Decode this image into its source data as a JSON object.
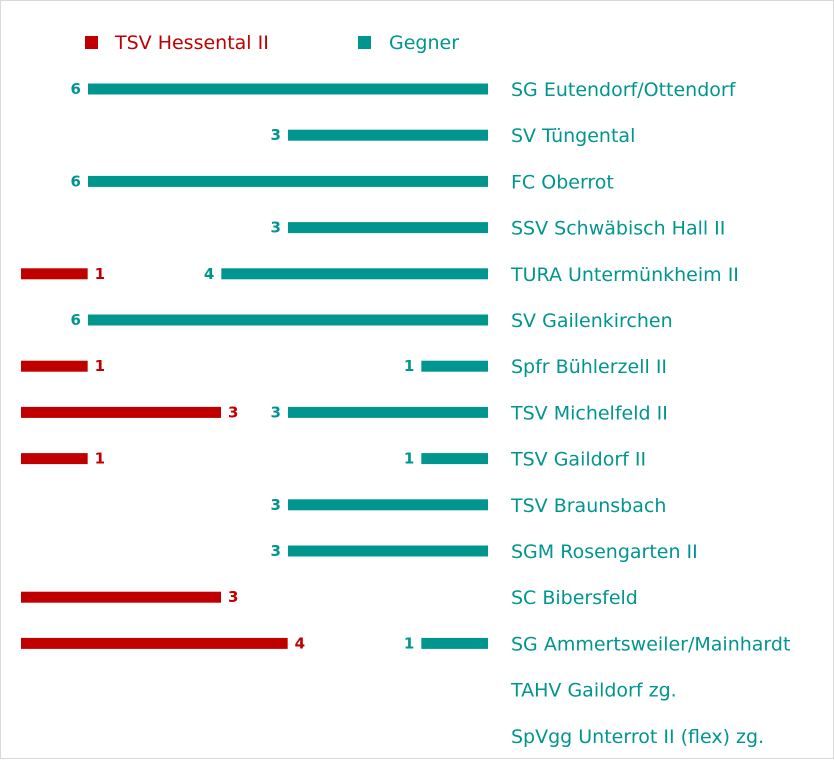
{
  "chart_data": {
    "type": "bar",
    "orientation": "horizontal",
    "series": [
      {
        "name": "TSV Hessental II",
        "color": "#c00000",
        "values": [
          0,
          0,
          0,
          0,
          1,
          0,
          1,
          3,
          1,
          0,
          0,
          3,
          4,
          0,
          0
        ]
      },
      {
        "name": "Gegner",
        "color": "#00958f",
        "values": [
          6,
          3,
          6,
          3,
          4,
          6,
          1,
          3,
          1,
          3,
          3,
          0,
          1,
          0,
          0
        ]
      }
    ],
    "categories": [
      "SG Eutendorf/Ottendorf",
      "SV Tüngental",
      "FC Oberrot",
      "SSV Schwäbisch Hall II",
      "TURA Untermünkheim II",
      "SV Gailenkirchen",
      "Spfr Bühlerzell II",
      "TSV Michelfeld II",
      "TSV Gaildorf II",
      "TSV Braunsbach",
      "SGM Rosengarten II",
      "SC Bibersfeld",
      "SG Ammertsweiler/Mainhardt",
      "TAHV Gaildorf zg.",
      "SpVgg Unterrot II (flex) zg."
    ],
    "legend_position": "top-left",
    "grid": false
  }
}
